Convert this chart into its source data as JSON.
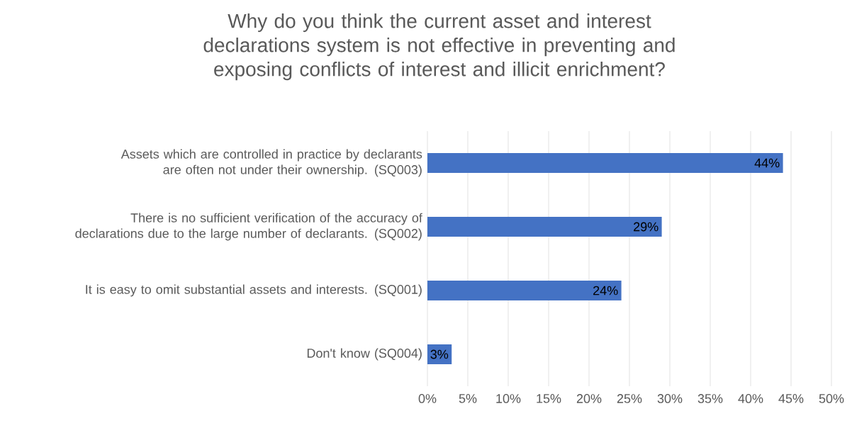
{
  "chart_data": {
    "type": "bar",
    "orientation": "horizontal",
    "title": "Why do you think the current asset and interest declarations system is not effective in preventing and exposing conflicts of interest and illicit enrichment?",
    "categories": [
      "Assets which are controlled in practice by declarants are often not under their ownership. (SQ003)",
      "There is no sufficient verification of the accuracy of declarations due to the large number of declarants. (SQ002)",
      "It is easy to omit substantial assets and interests. (SQ001)",
      "Don't know (SQ004)"
    ],
    "values": [
      44,
      29,
      24,
      3
    ],
    "color": "#4472c4",
    "value_labels": [
      "44%",
      "29%",
      "24%",
      "3%"
    ],
    "xlim": [
      0,
      50
    ],
    "xticks": [
      {
        "value": 0,
        "label": "0%"
      },
      {
        "value": 5,
        "label": "5%"
      },
      {
        "value": 10,
        "label": "10%"
      },
      {
        "value": 15,
        "label": "15%"
      },
      {
        "value": 20,
        "label": "20%"
      },
      {
        "value": 25,
        "label": "25%"
      },
      {
        "value": 30,
        "label": "30%"
      },
      {
        "value": 35,
        "label": "35%"
      },
      {
        "value": 40,
        "label": "40%"
      },
      {
        "value": 45,
        "label": "45%"
      },
      {
        "value": 50,
        "label": "50%"
      }
    ],
    "grid": "x"
  }
}
